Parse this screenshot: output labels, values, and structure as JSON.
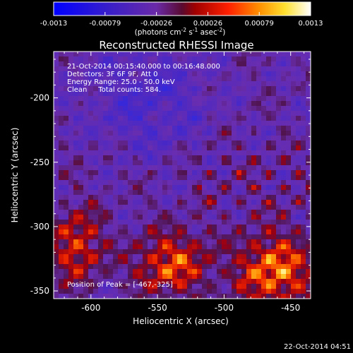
{
  "colorbar": {
    "tick_labels": [
      "-0.0013",
      "-0.00079",
      "-0.00026",
      "0.00026",
      "0.00079",
      "0.0013"
    ],
    "unit_parts": {
      "photons": "(photons cm",
      "exp1": "-2",
      "s": " s",
      "exp2": "-1",
      "asec": " asec",
      "exp3": "-2",
      "close": ")"
    },
    "colormap": "rhessi-blue-purple-red-yellow-white"
  },
  "plot": {
    "title": "Reconstructed RHESSI Image",
    "xlabel": "Heliocentric X (arcsec)",
    "ylabel": "Heliocentric Y (arcsec)",
    "xticks": [
      "-600",
      "-550",
      "-500",
      "-450"
    ],
    "yticks": [
      "-200",
      "-250",
      "-300",
      "-350"
    ],
    "info_lines": [
      "21-Oct-2014 00:15:40.000 to 00:16:48.000",
      "Detectors: 3F 6F 9F, Att 0",
      "Energy Range: 25.0 - 50.0 keV",
      "Clean     Total counts: 584."
    ],
    "peak_text": "Position of Peak = [-467,-325]"
  },
  "footer": {
    "timestamp": "22-Oct-2014 04:51"
  }
}
